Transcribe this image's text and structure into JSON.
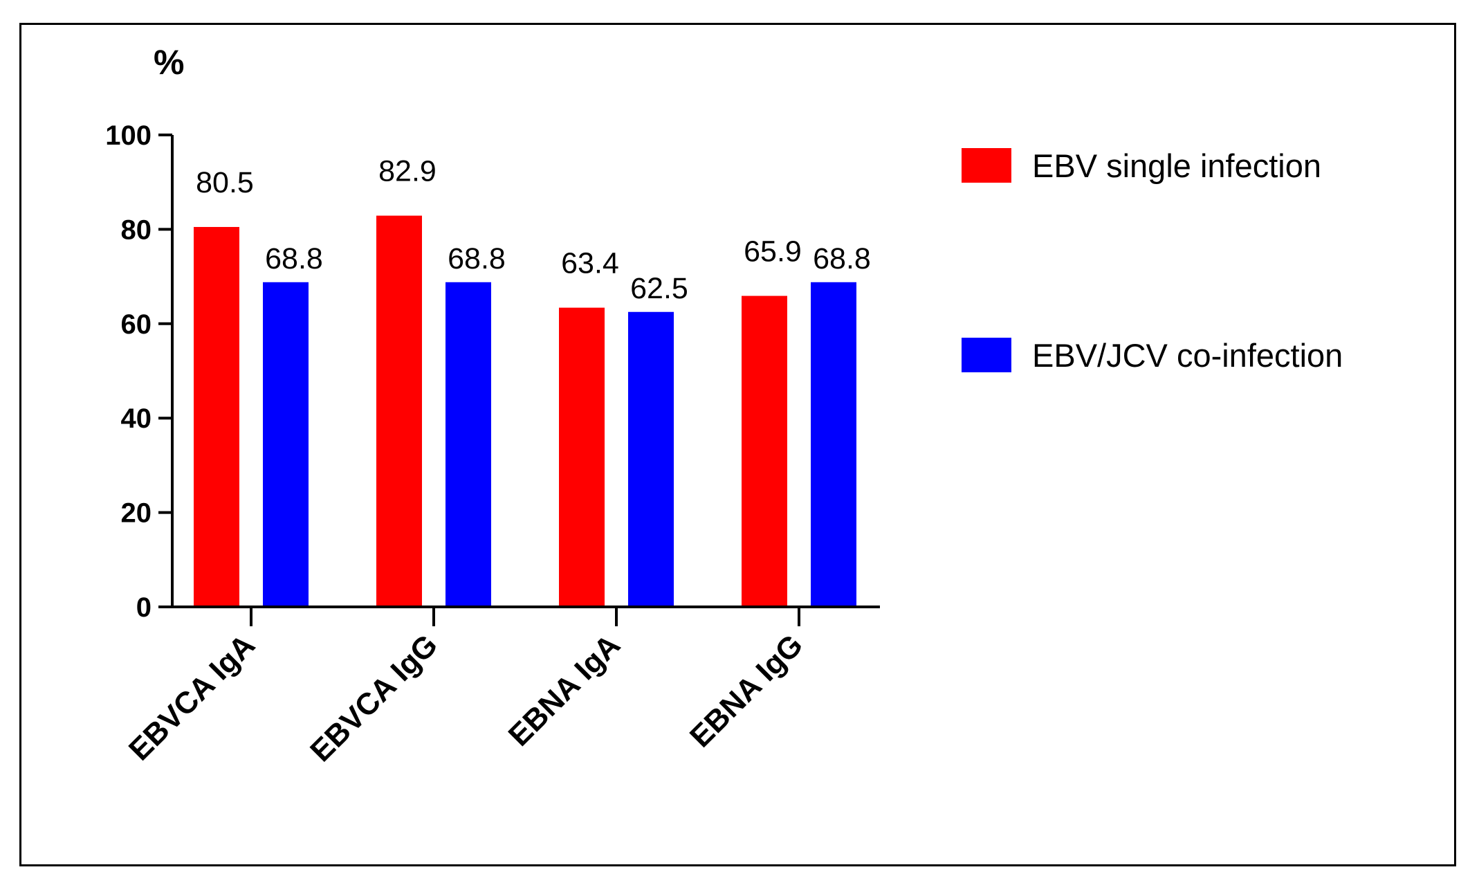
{
  "chart_data": {
    "type": "bar",
    "title": "",
    "xlabel": "",
    "ylabel": "%",
    "ylim": [
      0,
      100
    ],
    "yticks": [
      "0",
      "20",
      "40",
      "60",
      "80",
      "100"
    ],
    "grid": false,
    "legend_position": "right",
    "categories": [
      "EBVCA IgA",
      "EBVCA IgG",
      "EBNA IgA",
      "EBNA IgG"
    ],
    "series": [
      {
        "name": "EBV single infection",
        "color": "#ff0000",
        "values": [
          80.5,
          82.9,
          63.4,
          65.9
        ],
        "labels": [
          "80.5",
          "82.9",
          "63.4",
          "65.9"
        ]
      },
      {
        "name": "EBV/JCV co-infection",
        "color": "#0000ff",
        "values": [
          68.8,
          68.8,
          62.5,
          68.8
        ],
        "labels": [
          "68.8",
          "68.8",
          "62.5",
          "68.8"
        ]
      }
    ]
  }
}
